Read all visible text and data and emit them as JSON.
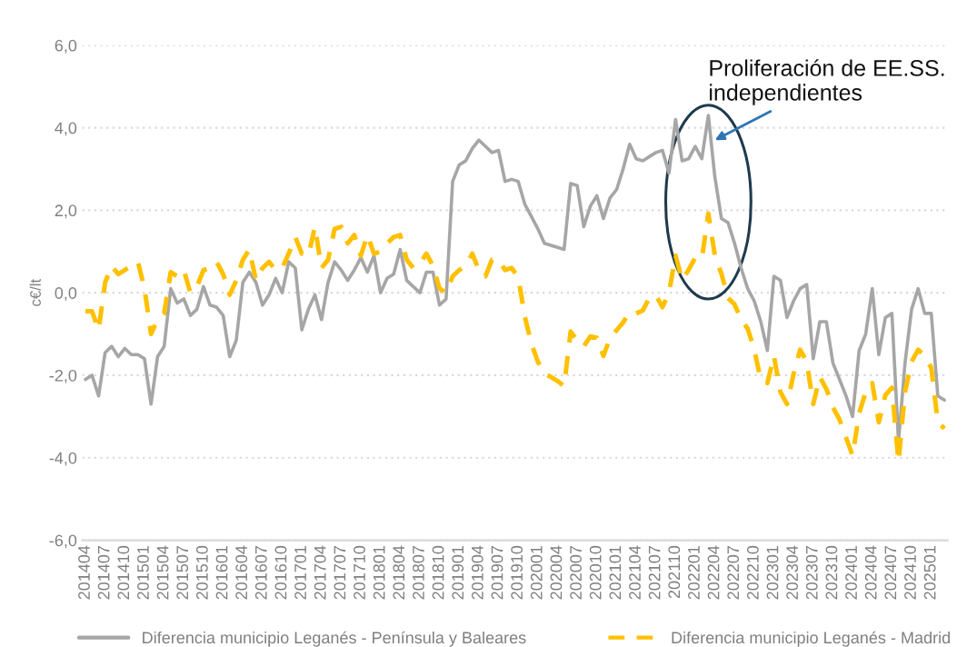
{
  "chart_data": {
    "type": "line",
    "ylabel": "c€/lt",
    "categories": [
      "201404",
      null,
      null,
      "201407",
      null,
      null,
      "201410",
      null,
      null,
      "201501",
      null,
      null,
      "201504",
      null,
      null,
      "201507",
      null,
      null,
      "201510",
      null,
      null,
      "201601",
      null,
      null,
      "201604",
      null,
      null,
      "201607",
      null,
      null,
      "201610",
      null,
      null,
      "201701",
      null,
      null,
      "201704",
      null,
      null,
      "201707",
      null,
      null,
      "201710",
      null,
      null,
      "201801",
      null,
      null,
      "201804",
      null,
      null,
      "201807",
      null,
      null,
      "201810",
      null,
      null,
      "201901",
      null,
      null,
      "201904",
      null,
      null,
      "201907",
      null,
      null,
      "201910",
      null,
      null,
      "202001",
      null,
      null,
      "202004",
      null,
      null,
      "202007",
      null,
      null,
      "202010",
      null,
      null,
      "202101",
      null,
      null,
      "202104",
      null,
      null,
      "202107",
      null,
      null,
      "202110",
      null,
      null,
      "202201",
      null,
      null,
      "202204",
      null,
      null,
      "202207",
      null,
      null,
      "202210",
      null,
      null,
      "202301",
      null,
      null,
      "202304",
      null,
      null,
      "202307",
      null,
      null,
      "202310",
      null,
      null,
      "202401",
      null,
      null,
      "202404",
      null,
      null,
      "202407",
      null,
      null,
      "202410",
      null,
      null,
      "202501",
      null,
      null
    ],
    "series": [
      {
        "name": "Diferencia municipio Leganés - Península y Baleares",
        "color": "#a6a6a6",
        "line_style": "solid",
        "values": [
          -2.1,
          -2.0,
          -2.5,
          -1.45,
          -1.3,
          -1.55,
          -1.35,
          -1.5,
          -1.5,
          -1.6,
          -2.7,
          -1.55,
          -1.3,
          0.1,
          -0.25,
          -0.15,
          -0.55,
          -0.4,
          0.15,
          -0.3,
          -0.35,
          -0.55,
          -1.55,
          -1.15,
          0.25,
          0.5,
          0.25,
          -0.3,
          -0.05,
          0.35,
          0.0,
          0.75,
          0.6,
          -0.9,
          -0.4,
          -0.05,
          -0.65,
          0.25,
          0.75,
          0.55,
          0.3,
          0.55,
          0.85,
          0.5,
          0.9,
          0.0,
          0.35,
          0.45,
          1.05,
          0.3,
          0.15,
          0.0,
          0.5,
          0.5,
          -0.3,
          -0.15,
          2.7,
          3.1,
          3.2,
          3.5,
          3.7,
          3.55,
          3.4,
          3.45,
          2.7,
          2.75,
          2.7,
          2.15,
          1.85,
          1.55,
          1.2,
          1.15,
          1.1,
          1.05,
          2.65,
          2.6,
          1.6,
          2.1,
          2.35,
          1.8,
          2.3,
          2.5,
          3.0,
          3.6,
          3.25,
          3.2,
          3.3,
          3.4,
          3.45,
          2.9,
          4.2,
          3.2,
          3.25,
          3.55,
          3.25,
          4.3,
          2.8,
          1.8,
          1.7,
          1.2,
          0.6,
          0.1,
          -0.2,
          -0.7,
          -1.4,
          0.4,
          0.3,
          -0.6,
          -0.2,
          0.1,
          0.2,
          -1.6,
          -0.7,
          -0.7,
          -1.7,
          -2.1,
          -2.5,
          -3.0,
          -1.4,
          -1.0,
          0.1,
          -1.5,
          -0.6,
          -0.5,
          -3.6,
          -1.7,
          -0.4,
          0.1,
          -0.5,
          -0.5,
          -2.5,
          -2.6
        ]
      },
      {
        "name": "Diferencia municipio Leganés - Madrid",
        "color": "#ffc000",
        "line_style": "dashed",
        "values": [
          -0.45,
          -0.45,
          -0.9,
          0.25,
          0.65,
          0.45,
          0.55,
          0.65,
          0.75,
          0.1,
          -1.0,
          -0.65,
          -0.5,
          0.5,
          0.4,
          0.55,
          0.0,
          0.15,
          0.55,
          0.6,
          0.75,
          0.45,
          -0.05,
          0.3,
          0.8,
          1.05,
          0.3,
          0.6,
          0.75,
          0.55,
          0.6,
          0.95,
          1.35,
          0.95,
          0.9,
          1.6,
          0.6,
          0.8,
          1.55,
          1.6,
          1.2,
          1.4,
          0.9,
          1.4,
          0.95,
          1.0,
          1.2,
          1.35,
          1.4,
          0.8,
          0.6,
          0.7,
          0.95,
          0.65,
          0.1,
          0.0,
          0.4,
          0.55,
          0.65,
          0.95,
          0.55,
          0.4,
          0.8,
          0.8,
          0.55,
          0.6,
          0.38,
          -0.57,
          -1.23,
          -1.67,
          -1.97,
          -2.04,
          -2.14,
          -2.26,
          -0.94,
          -1.16,
          -1.3,
          -1.06,
          -1.09,
          -1.53,
          -1.09,
          -0.91,
          -0.72,
          -0.47,
          -0.5,
          -0.43,
          -0.13,
          -0.06,
          -0.35,
          0.0,
          0.9,
          0.31,
          0.56,
          0.85,
          0.82,
          1.92,
          0.9,
          0.46,
          -0.13,
          -0.28,
          -0.65,
          -0.87,
          -1.38,
          -2.11,
          -2.19,
          -1.53,
          -2.41,
          -2.7,
          -1.97,
          -1.38,
          -1.67,
          -2.7,
          -2.04,
          -2.33,
          -2.78,
          -3.07,
          -3.51,
          -3.95,
          -2.92,
          -2.41,
          -2.19,
          -3.14,
          -2.48,
          -2.3,
          -4.1,
          -2.4,
          -1.67,
          -1.38,
          -1.53,
          -1.82,
          -3.14,
          -3.29
        ]
      }
    ],
    "ylim": [
      -6,
      6
    ],
    "yticks": [
      {
        "value": -6,
        "label": "-6,0"
      },
      {
        "value": -4,
        "label": "-4,0"
      },
      {
        "value": -2,
        "label": "-2,0"
      },
      {
        "value": 0,
        "label": "0,0"
      },
      {
        "value": 2,
        "label": "2,0"
      },
      {
        "value": 4,
        "label": "4,0"
      },
      {
        "value": 6,
        "label": "6,0"
      }
    ],
    "grid": "y",
    "legend": "bottom",
    "annotations": [
      {
        "text": "Proliferación de EE.SS.\nindependientes",
        "x": "202204",
        "y": 3.7
      }
    ]
  }
}
